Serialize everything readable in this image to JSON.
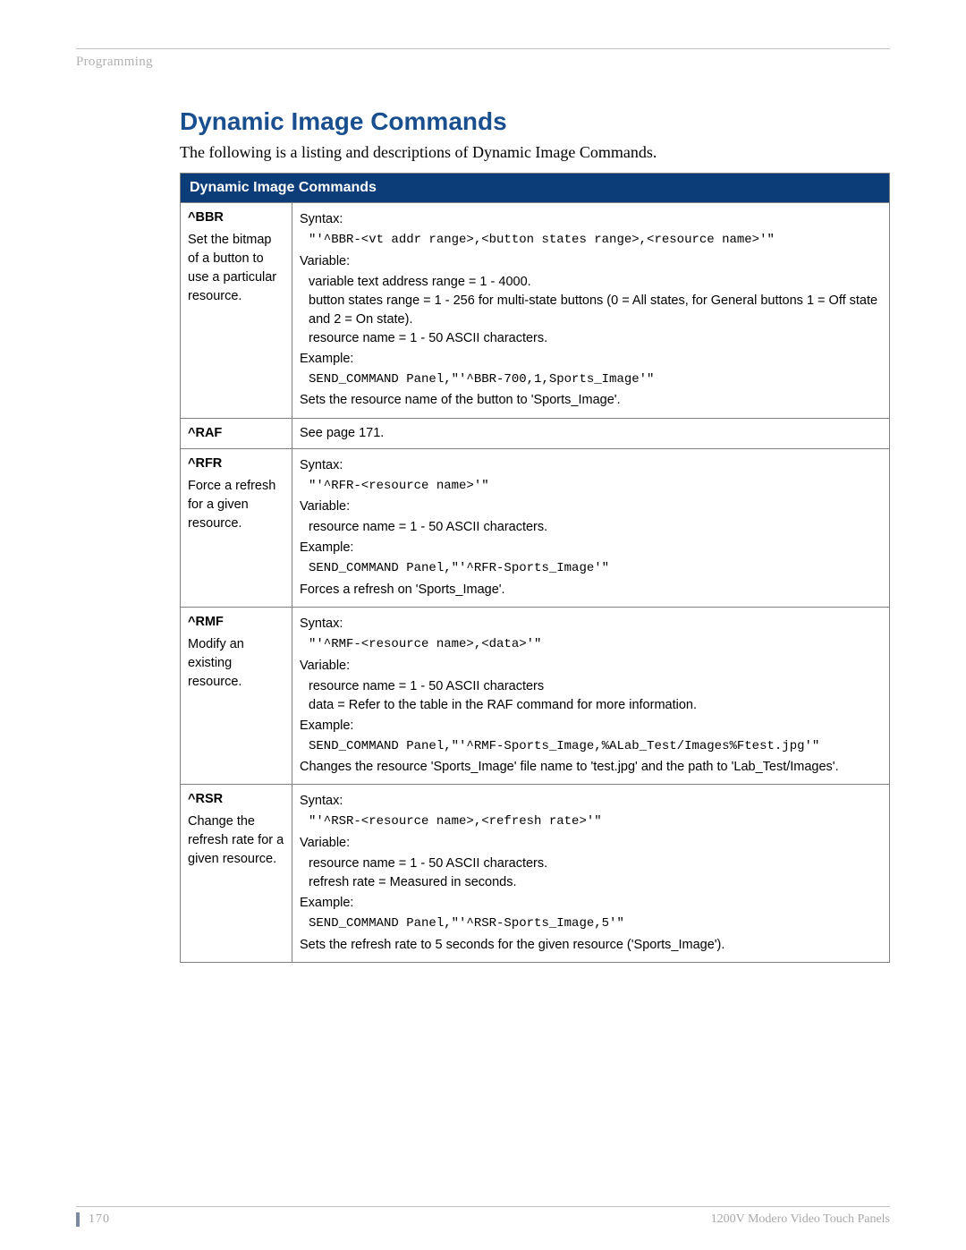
{
  "header": {
    "section": "Programming"
  },
  "title": "Dynamic Image Commands",
  "intro": "The following is a listing and descriptions of Dynamic Image Commands.",
  "table_header": "Dynamic Image Commands",
  "rows": [
    {
      "cmd": "^BBR",
      "desc": "Set the bitmap of a button to use a particular resource.",
      "syntax_label": "Syntax:",
      "syntax": "\"'^BBR-<vt addr range>,<button states range>,<resource name>'\"",
      "variable_label": "Variable:",
      "vars": [
        "variable text address range = 1 - 4000.",
        "button states range = 1 - 256 for multi-state buttons (0 = All states, for General buttons 1 = Off state and 2 = On state).",
        "resource name = 1 - 50 ASCII characters."
      ],
      "example_label": "Example:",
      "example": "SEND_COMMAND Panel,\"'^BBR-700,1,Sports_Image'\"",
      "result": "Sets the resource name of the button to 'Sports_Image'."
    },
    {
      "cmd": "^RAF",
      "desc": "",
      "see": "See page 171."
    },
    {
      "cmd": "^RFR",
      "desc": "Force a refresh for a given resource.",
      "syntax_label": "Syntax:",
      "syntax": "\"'^RFR-<resource name>'\"",
      "variable_label": "Variable:",
      "vars": [
        "resource name = 1 - 50 ASCII characters."
      ],
      "example_label": "Example:",
      "example": "SEND_COMMAND Panel,\"'^RFR-Sports_Image'\"",
      "result": "Forces a refresh on 'Sports_Image'."
    },
    {
      "cmd": "^RMF",
      "desc": "Modify an existing resource.",
      "syntax_label": "Syntax:",
      "syntax": "\"'^RMF-<resource name>,<data>'\"",
      "variable_label": "Variable:",
      "vars": [
        "resource name = 1 - 50 ASCII characters",
        "data = Refer to the table in the RAF command for more information."
      ],
      "example_label": "Example:",
      "example": "SEND_COMMAND Panel,\"'^RMF-Sports_Image,%ALab_Test/Images%Ftest.jpg'\"",
      "result": "Changes the resource 'Sports_Image' file name to 'test.jpg' and the path to 'Lab_Test/Images'."
    },
    {
      "cmd": "^RSR",
      "desc": "Change the refresh rate for a given resource.",
      "syntax_label": "Syntax:",
      "syntax": "\"'^RSR-<resource name>,<refresh rate>'\"",
      "variable_label": "Variable:",
      "vars": [
        "resource name = 1 - 50 ASCII characters.",
        "refresh rate = Measured in seconds."
      ],
      "example_label": "Example:",
      "example": "SEND_COMMAND Panel,\"'^RSR-Sports_Image,5'\"",
      "result": "Sets the refresh rate to 5 seconds for the given resource ('Sports_Image')."
    }
  ],
  "footer": {
    "page": "170",
    "product": "1200V Modero Video Touch Panels"
  }
}
